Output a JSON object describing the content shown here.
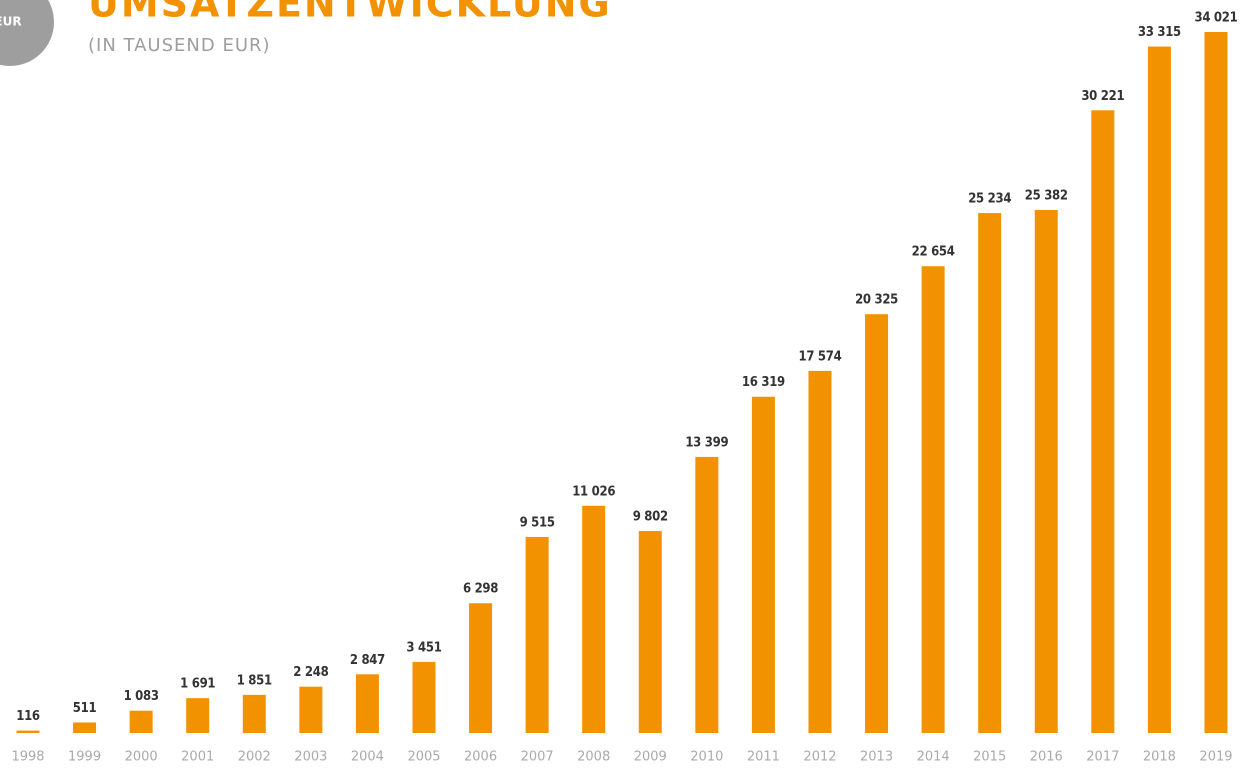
{
  "logo": {
    "text": "EUR"
  },
  "chart_data": {
    "type": "bar",
    "title": "UMSATZENTWICKLUNG",
    "subtitle": "(IN TAUSEND EUR)",
    "color": "#f39200",
    "categories": [
      "1998",
      "1999",
      "2000",
      "2001",
      "2002",
      "2003",
      "2004",
      "2005",
      "2006",
      "2007",
      "2008",
      "2009",
      "2010",
      "2011",
      "2012",
      "2013",
      "2014",
      "2015",
      "2016",
      "2017",
      "2018",
      "2019"
    ],
    "values": [
      116,
      511,
      1083,
      1691,
      1851,
      2248,
      2847,
      3451,
      6298,
      9515,
      11026,
      9802,
      13399,
      16319,
      17574,
      20325,
      22654,
      25234,
      25382,
      30221,
      33315,
      34021
    ],
    "value_labels": [
      "116",
      "511",
      "1 083",
      "1 691",
      "1 851",
      "2 248",
      "2 847",
      "3 451",
      "6 298",
      "9 515",
      "11 026",
      "9 802",
      "13 399",
      "16 319",
      "17 574",
      "20 325",
      "22 654",
      "25 234",
      "25 382",
      "30 221",
      "33 315",
      "34 021"
    ]
  }
}
